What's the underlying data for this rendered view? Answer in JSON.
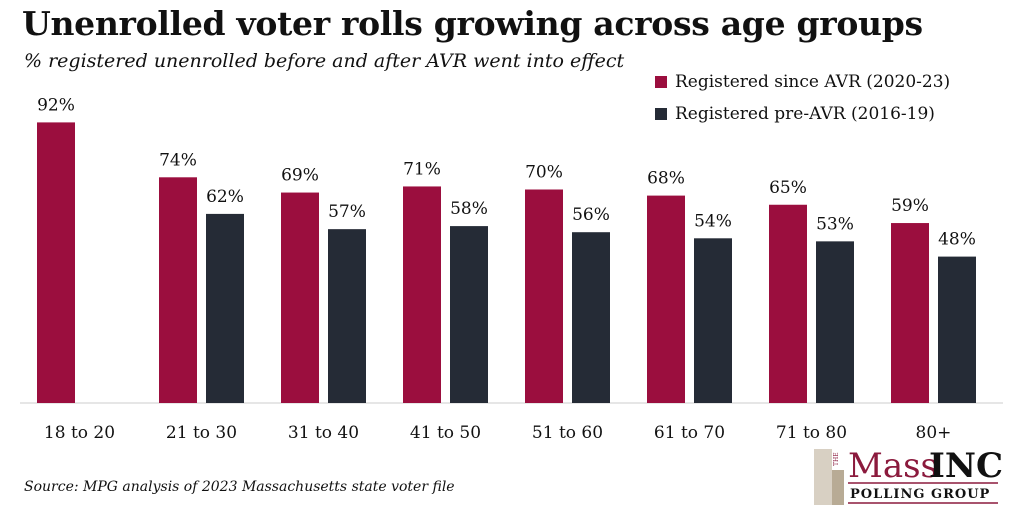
{
  "title": "Unenrolled voter rolls growing across age groups",
  "subtitle": "% registered unenrolled before and after AVR went into effect",
  "source": "Source: MPG analysis of 2023 Massachusetts state voter file",
  "logo": {
    "small": "THE",
    "main1": "Mass",
    "main2": "INC",
    "sub": "POLLING GROUP"
  },
  "chart_data": {
    "type": "bar",
    "categories": [
      "18 to 20",
      "21 to 30",
      "31 to 40",
      "41 to 50",
      "51 to 60",
      "61 to 70",
      "71 to 80",
      "80+"
    ],
    "series": [
      {
        "name": "Registered since AVR (2020-23)",
        "color": "#9b0e3e",
        "values": [
          92,
          74,
          69,
          71,
          70,
          68,
          65,
          59
        ]
      },
      {
        "name": "Registered pre-AVR (2016-19)",
        "color": "#252b36",
        "values": [
          null,
          62,
          57,
          58,
          56,
          54,
          53,
          48
        ]
      }
    ],
    "value_format": "percent",
    "ylim": [
      0,
      100
    ],
    "grid": false,
    "legend_position": "top-right"
  }
}
